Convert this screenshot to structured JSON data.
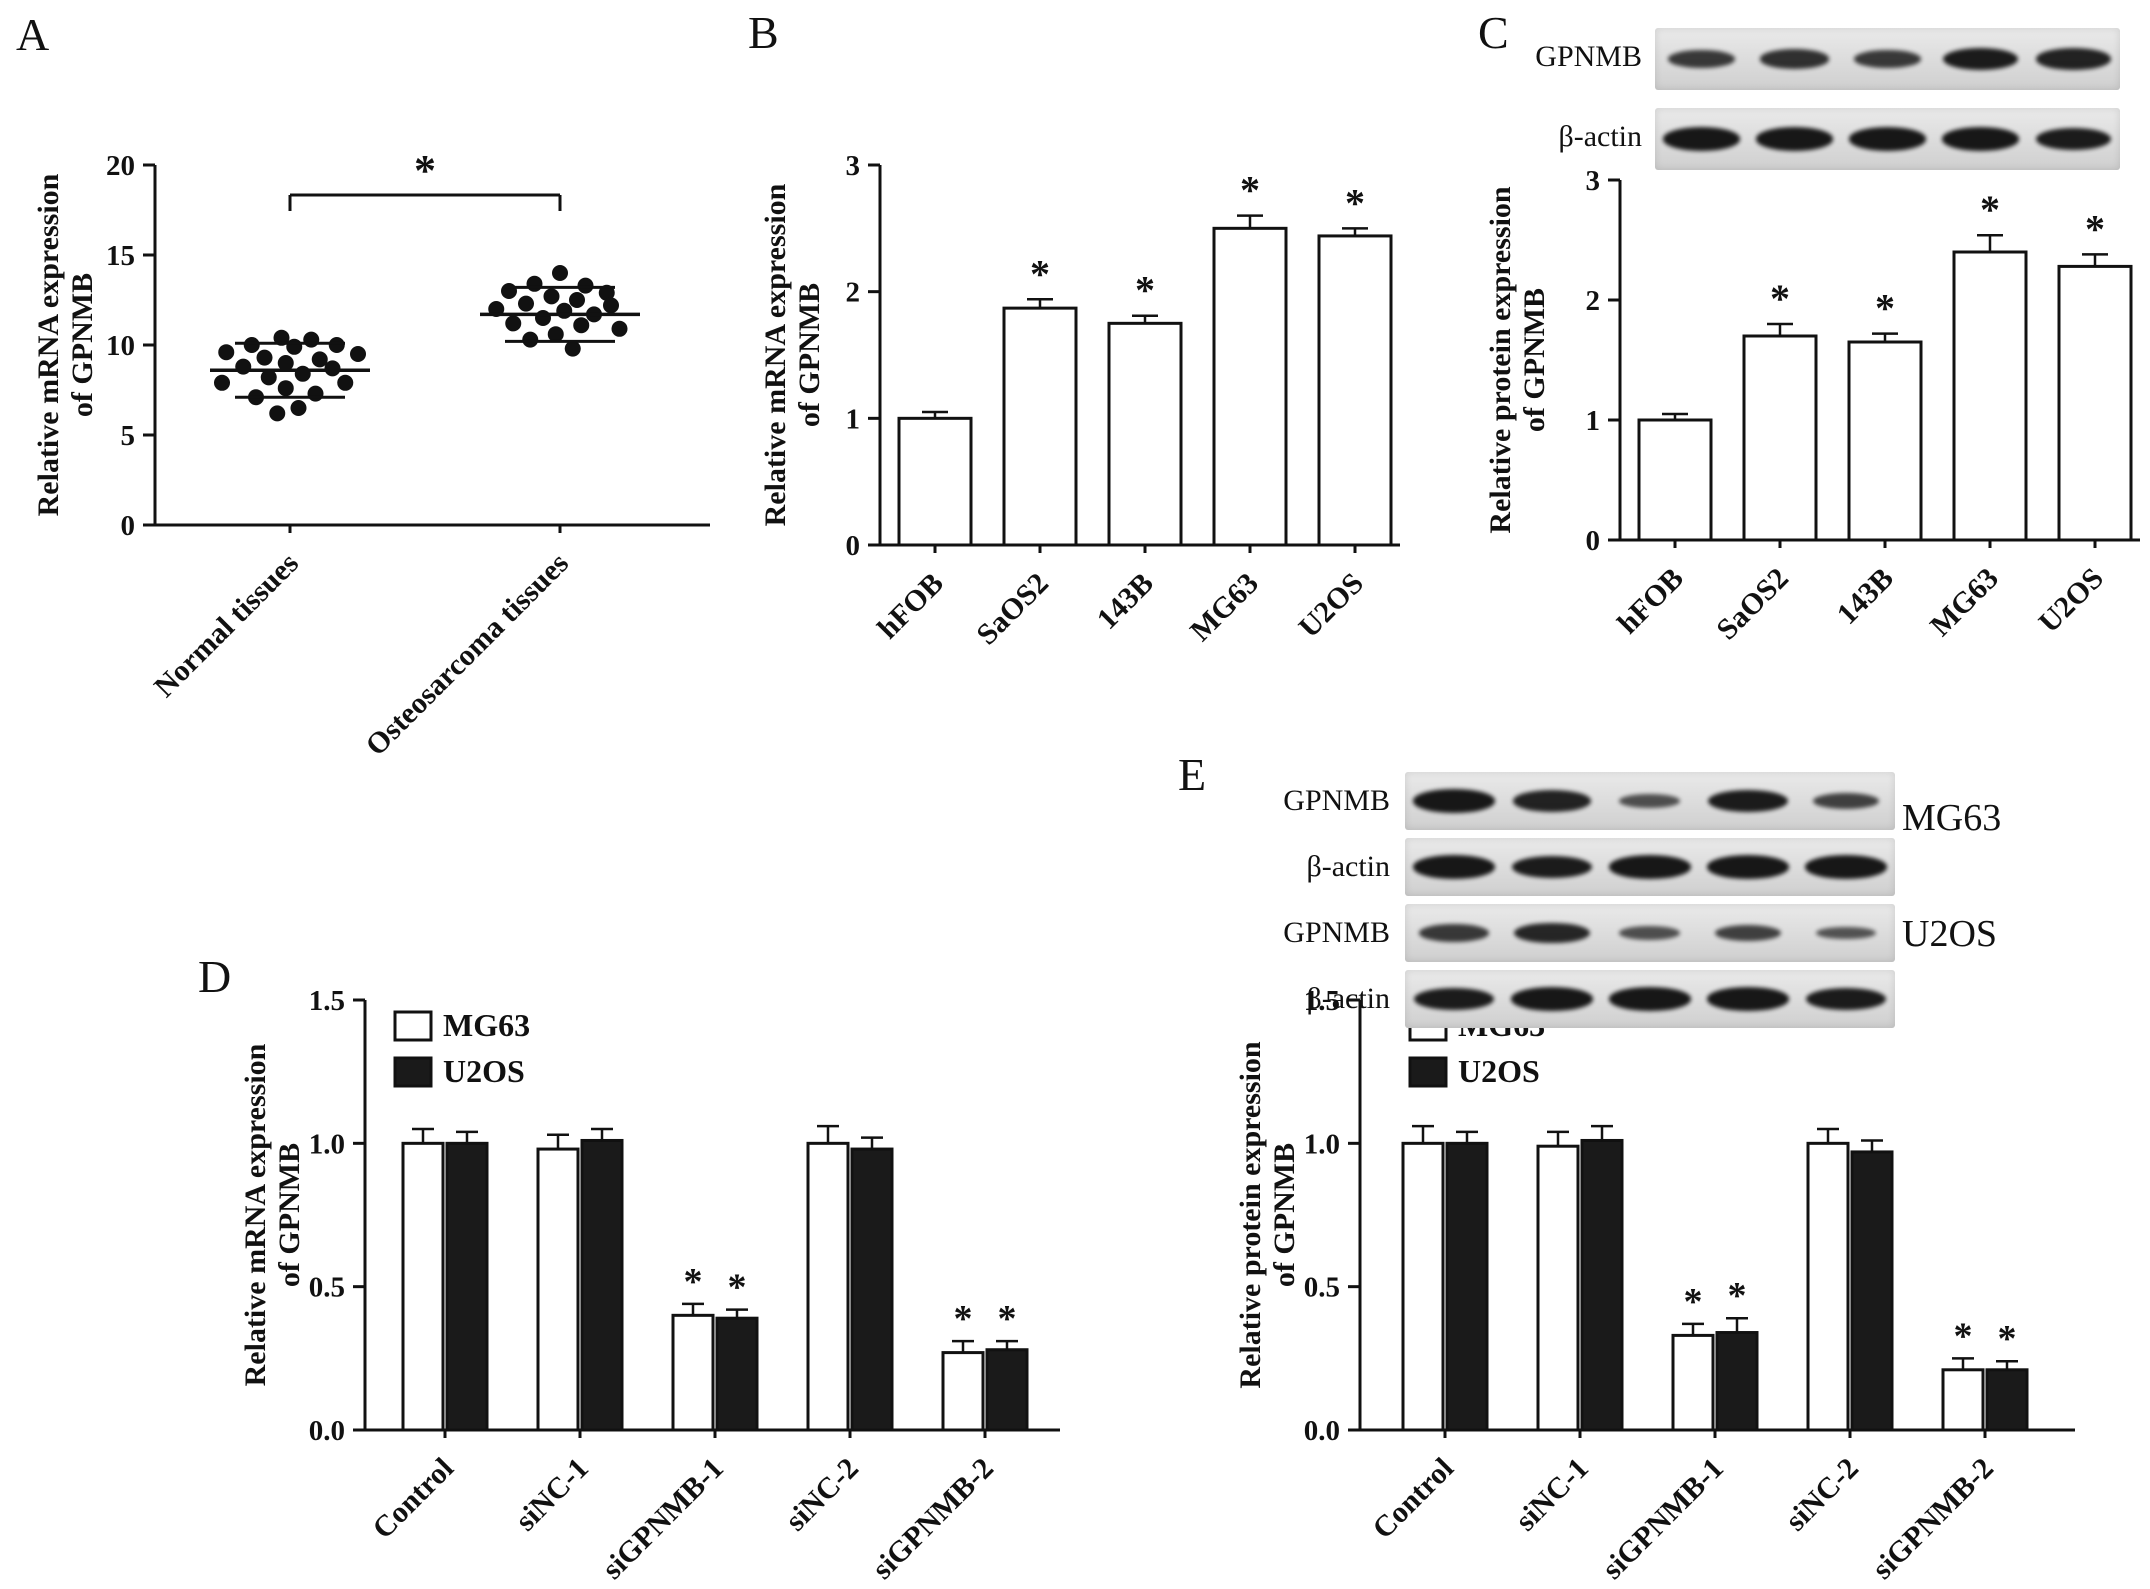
{
  "panel_labels": [
    "A",
    "B",
    "C",
    "D",
    "E"
  ],
  "colors": {
    "ink": "#111111",
    "bar_white": "#ffffff",
    "bar_black": "#1a1a1a"
  },
  "chart_data": [
    {
      "panel": "A",
      "type": "scatter",
      "ylabel_lines": [
        "Relative mRNA expression",
        "of GPNMB"
      ],
      "ylim": [
        0,
        20
      ],
      "yticks": [
        0,
        5,
        10,
        15,
        20
      ],
      "ytick_format": 0,
      "categories": [
        "Normal tissues",
        "Osteosarcoma tissues"
      ],
      "groups": [
        {
          "name": "Normal tissues",
          "mean": 8.6,
          "sd_high": 10.1,
          "sd_low": 7.1,
          "points": [
            [
              -0.1,
              10.4
            ],
            [
              0.25,
              10.3
            ],
            [
              -0.45,
              10.0
            ],
            [
              0.55,
              10.0
            ],
            [
              0.05,
              9.9
            ],
            [
              -0.75,
              9.6
            ],
            [
              0.8,
              9.5
            ],
            [
              -0.3,
              9.3
            ],
            [
              0.35,
              9.2
            ],
            [
              -0.05,
              9.0
            ],
            [
              -0.55,
              8.8
            ],
            [
              0.5,
              8.7
            ],
            [
              0.15,
              8.4
            ],
            [
              -0.25,
              8.2
            ],
            [
              -0.8,
              7.9
            ],
            [
              0.65,
              7.9
            ],
            [
              -0.05,
              7.6
            ],
            [
              0.3,
              7.3
            ],
            [
              -0.4,
              7.1
            ],
            [
              0.1,
              6.5
            ],
            [
              -0.15,
              6.2
            ]
          ]
        },
        {
          "name": "Osteosarcoma tissues",
          "mean": 11.7,
          "sd_high": 13.2,
          "sd_low": 10.2,
          "points": [
            [
              0.0,
              14.0
            ],
            [
              -0.3,
              13.4
            ],
            [
              0.3,
              13.3
            ],
            [
              -0.6,
              13.0
            ],
            [
              0.55,
              12.9
            ],
            [
              -0.1,
              12.7
            ],
            [
              0.2,
              12.5
            ],
            [
              -0.4,
              12.3
            ],
            [
              0.6,
              12.2
            ],
            [
              -0.75,
              12.0
            ],
            [
              0.05,
              11.9
            ],
            [
              0.4,
              11.7
            ],
            [
              -0.2,
              11.5
            ],
            [
              -0.55,
              11.2
            ],
            [
              0.25,
              11.1
            ],
            [
              0.7,
              10.9
            ],
            [
              -0.05,
              10.6
            ],
            [
              -0.35,
              10.3
            ],
            [
              0.15,
              9.8
            ]
          ]
        }
      ],
      "significance": {
        "label": "*",
        "between": [
          "Normal tissues",
          "Osteosarcoma tissues"
        ]
      }
    },
    {
      "panel": "B",
      "type": "bar",
      "ylabel_lines": [
        "Relative mRNA expression",
        "of GPNMB"
      ],
      "ylim": [
        0,
        3
      ],
      "yticks": [
        0,
        1,
        2,
        3
      ],
      "ytick_format": 0,
      "categories": [
        "hFOB",
        "SaOS2",
        "143B",
        "MG63",
        "U2OS"
      ],
      "values": [
        1.0,
        1.87,
        1.75,
        2.5,
        2.44
      ],
      "errors": [
        0.05,
        0.07,
        0.06,
        0.1,
        0.06
      ],
      "sig": [
        false,
        true,
        true,
        true,
        true
      ]
    },
    {
      "panel": "C",
      "type": "bar",
      "ylabel_lines": [
        "Relative protein expression",
        "of GPNMB"
      ],
      "ylim": [
        0,
        3
      ],
      "yticks": [
        0,
        1,
        2,
        3
      ],
      "ytick_format": 0,
      "categories": [
        "hFOB",
        "SaOS2",
        "143B",
        "MG63",
        "U2OS"
      ],
      "values": [
        1.0,
        1.7,
        1.65,
        2.4,
        2.28
      ],
      "errors": [
        0.05,
        0.1,
        0.07,
        0.14,
        0.1
      ],
      "sig": [
        false,
        true,
        true,
        true,
        true
      ]
    },
    {
      "panel": "D",
      "type": "grouped_bar",
      "ylabel_lines": [
        "Relative mRNA expression",
        "of GPNMB"
      ],
      "ylim": [
        0,
        1.5
      ],
      "yticks": [
        0,
        0.5,
        1,
        1.5
      ],
      "ytick_format": 1,
      "categories": [
        "Control",
        "siNC-1",
        "siGPNMB-1",
        "siNC-2",
        "siGPNMB-2"
      ],
      "series": [
        {
          "name": "MG63",
          "fill": "#ffffff",
          "values": [
            1.0,
            0.98,
            0.4,
            1.0,
            0.27
          ],
          "errors": [
            0.05,
            0.05,
            0.04,
            0.06,
            0.04
          ],
          "sig": [
            false,
            false,
            true,
            false,
            true
          ]
        },
        {
          "name": "U2OS",
          "fill": "#1a1a1a",
          "values": [
            1.0,
            1.01,
            0.39,
            0.98,
            0.28
          ],
          "errors": [
            0.04,
            0.04,
            0.03,
            0.04,
            0.03
          ],
          "sig": [
            false,
            false,
            true,
            false,
            true
          ]
        }
      ]
    },
    {
      "panel": "E",
      "type": "grouped_bar",
      "ylabel_lines": [
        "Relative protein expression",
        "of GPNMB"
      ],
      "ylim": [
        0,
        1.5
      ],
      "yticks": [
        0,
        0.5,
        1,
        1.5
      ],
      "ytick_format": 1,
      "categories": [
        "Control",
        "siNC-1",
        "siGPNMB-1",
        "siNC-2",
        "siGPNMB-2"
      ],
      "series": [
        {
          "name": "MG63",
          "fill": "#ffffff",
          "values": [
            1.0,
            0.99,
            0.33,
            1.0,
            0.21
          ],
          "errors": [
            0.06,
            0.05,
            0.04,
            0.05,
            0.04
          ],
          "sig": [
            false,
            false,
            true,
            false,
            true
          ]
        },
        {
          "name": "U2OS",
          "fill": "#1a1a1a",
          "values": [
            1.0,
            1.01,
            0.34,
            0.97,
            0.21
          ],
          "errors": [
            0.04,
            0.05,
            0.05,
            0.04,
            0.03
          ],
          "sig": [
            false,
            false,
            true,
            false,
            true
          ]
        }
      ]
    }
  ],
  "blots": {
    "C": {
      "rows": [
        {
          "label": "GPNMB",
          "bands": [
            0.6,
            0.7,
            0.6,
            0.9,
            0.85
          ]
        },
        {
          "label": "β-actin",
          "bands": [
            0.95,
            0.95,
            0.95,
            0.95,
            0.9
          ]
        }
      ]
    },
    "E": {
      "cell_labels": [
        "MG63",
        "U2OS"
      ],
      "rows": [
        {
          "label": "GPNMB",
          "cell": "MG63",
          "bands": [
            0.95,
            0.85,
            0.35,
            0.9,
            0.5
          ]
        },
        {
          "label": "β-actin",
          "cell": "MG63",
          "bands": [
            0.95,
            0.9,
            0.95,
            0.95,
            0.95
          ]
        },
        {
          "label": "GPNMB",
          "cell": "U2OS",
          "bands": [
            0.6,
            0.8,
            0.35,
            0.5,
            0.3
          ]
        },
        {
          "label": "β-actin",
          "cell": "U2OS",
          "bands": [
            0.9,
            0.95,
            0.95,
            0.95,
            0.9
          ]
        }
      ]
    }
  }
}
